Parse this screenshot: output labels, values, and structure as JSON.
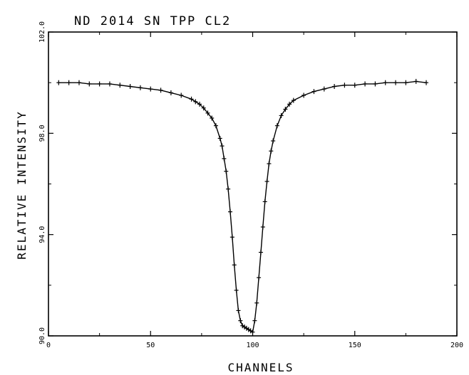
{
  "chart_data": {
    "type": "scatter",
    "title": "ND 2014 SN TPP CL2",
    "xlabel": "CHANNELS",
    "ylabel": "RELATIVE INTENSITY",
    "xlim": [
      0,
      200
    ],
    "ylim": [
      90.0,
      102.0
    ],
    "x_ticks": [
      0,
      50,
      100,
      150,
      200
    ],
    "x_tick_labels": [
      "0",
      "50",
      "100",
      "150",
      "200"
    ],
    "y_ticks": [
      90.0,
      94.0,
      98.0,
      102.0
    ],
    "y_tick_labels": [
      "90.0",
      "94.0",
      "98.0",
      "102.0"
    ],
    "grid": false,
    "series": [
      {
        "x": [
          5,
          10,
          15,
          20,
          25,
          30,
          35,
          40,
          45,
          50,
          55,
          60,
          65,
          70,
          72,
          74,
          76,
          78,
          80,
          82,
          84,
          85,
          86,
          87,
          88,
          89,
          90,
          91,
          92,
          93,
          94,
          95,
          96,
          97,
          98,
          99,
          100,
          101,
          102,
          103,
          104,
          105,
          106,
          107,
          108,
          109,
          110,
          112,
          114,
          116,
          118,
          120,
          125,
          130,
          135,
          140,
          145,
          150,
          155,
          160,
          165,
          170,
          175,
          180,
          185
        ],
        "y": [
          100.0,
          100.0,
          100.0,
          99.95,
          99.95,
          99.95,
          99.9,
          99.85,
          99.8,
          99.75,
          99.7,
          99.6,
          99.5,
          99.35,
          99.25,
          99.15,
          99.0,
          98.8,
          98.6,
          98.3,
          97.8,
          97.5,
          97.0,
          96.5,
          95.8,
          94.9,
          93.9,
          92.8,
          91.8,
          91.0,
          90.6,
          90.4,
          90.35,
          90.3,
          90.25,
          90.2,
          90.15,
          90.6,
          91.3,
          92.3,
          93.3,
          94.3,
          95.3,
          96.1,
          96.8,
          97.3,
          97.7,
          98.3,
          98.7,
          98.95,
          99.15,
          99.3,
          99.5,
          99.65,
          99.75,
          99.85,
          99.9,
          99.9,
          99.95,
          99.95,
          100.0,
          100.0,
          100.0,
          100.05,
          100.0
        ]
      }
    ]
  }
}
